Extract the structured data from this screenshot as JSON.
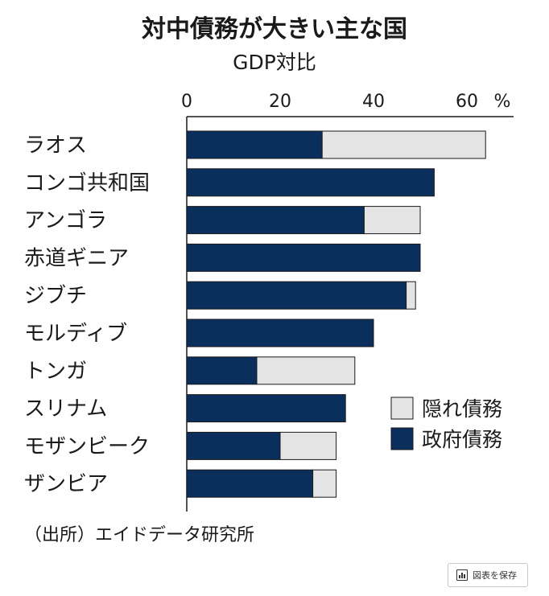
{
  "chart_data": {
    "type": "bar",
    "stacked": true,
    "orientation": "horizontal",
    "title": "対中債務が大きい主な国",
    "subtitle": "GDP対比",
    "unit": "%",
    "xlim": [
      0,
      70
    ],
    "ticks": [
      0,
      20,
      40,
      60
    ],
    "categories": [
      "ラオス",
      "コンゴ共和国",
      "アンゴラ",
      "赤道ギニア",
      "ジブチ",
      "モルディブ",
      "トンガ",
      "スリナム",
      "モザンビーク",
      "ザンビア"
    ],
    "series": [
      {
        "name": "政府債務",
        "color": "#0b2f5c",
        "values": [
          29,
          53,
          38,
          50,
          47,
          40,
          15,
          34,
          20,
          27
        ]
      },
      {
        "name": "隠れ債務",
        "color": "#e4e4e4",
        "values": [
          35,
          0,
          12,
          0,
          2,
          0,
          21,
          0,
          12,
          5
        ]
      }
    ],
    "legend": {
      "position": "right-middle",
      "order": [
        "隠れ債務",
        "政府債務"
      ]
    },
    "source": "（出所）エイドデータ研究所"
  },
  "ui": {
    "save_button_label": "図表を保存"
  }
}
